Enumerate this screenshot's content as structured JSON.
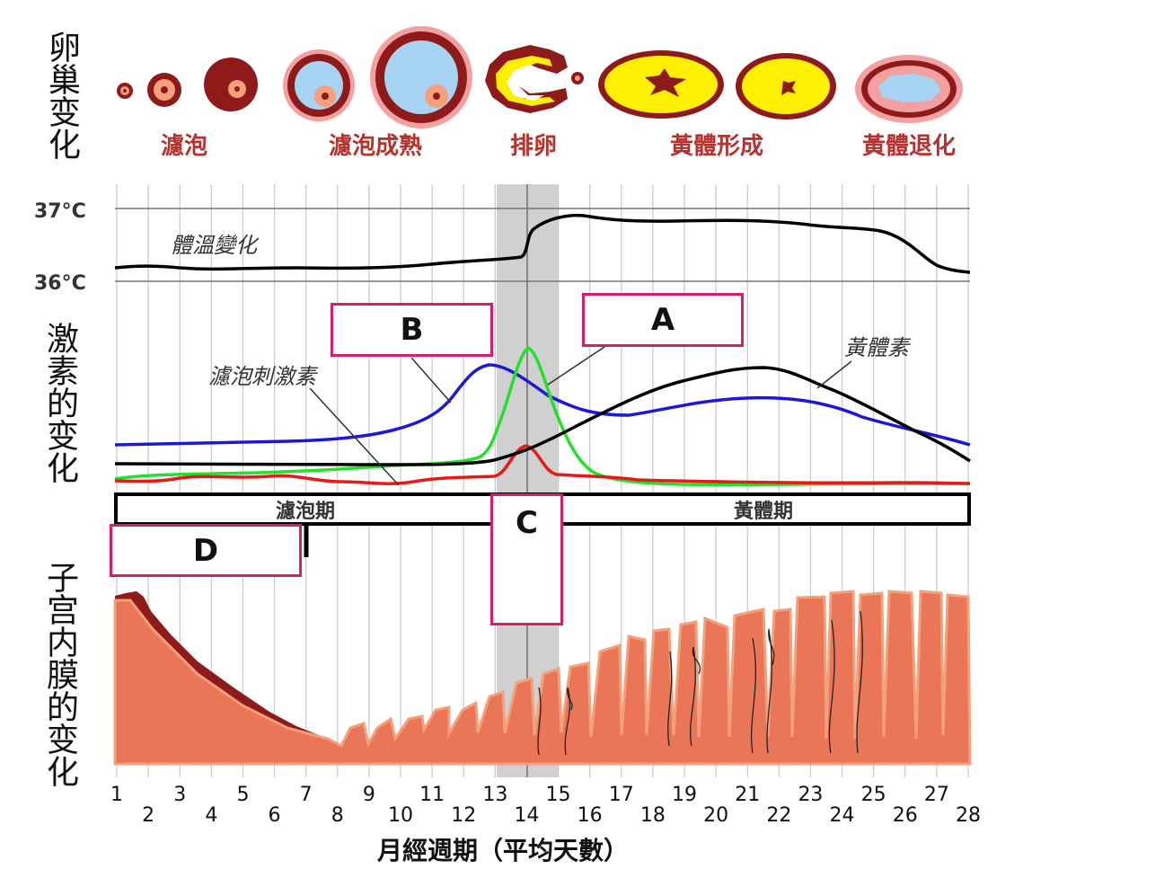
{
  "side_labels": {
    "ovary": "卵巢变化",
    "hormone": "激素的变化",
    "endometrium": "子宫内膜的变化"
  },
  "ovary_stages": [
    "濾泡",
    "濾泡成熟",
    "排卵",
    "黃體形成",
    "黃體退化"
  ],
  "temperature": {
    "high": "37°C",
    "low": "36°C",
    "curve_label": "體溫變化"
  },
  "hormone_labels": {
    "fsh": "濾泡刺激素",
    "progesterone": "黃體素"
  },
  "phases": {
    "follicular": "濾泡期",
    "luteal": "黃體期"
  },
  "answer_boxes": {
    "a": "A",
    "b": "B",
    "c": "C",
    "d": "D"
  },
  "x_axis": {
    "title": "月經週期（平均天數）",
    "ticks": [
      "1",
      "2",
      "3",
      "4",
      "5",
      "6",
      "7",
      "8",
      "9",
      "10",
      "11",
      "12",
      "13",
      "14",
      "15",
      "16",
      "17",
      "18",
      "19",
      "20",
      "21",
      "22",
      "23",
      "24",
      "25",
      "26",
      "27",
      "28"
    ]
  },
  "colors": {
    "stage_text": "#b5332f",
    "box_border": "#d61f6a",
    "curve_blue": "#1a1ad6",
    "curve_green": "#22e02c",
    "curve_red": "#e41b17",
    "curve_black": "#000000",
    "endometrium": "#ea7557",
    "endometrium_dark": "#8e1a1a",
    "ovulation_band": "#c8c8c8"
  }
}
